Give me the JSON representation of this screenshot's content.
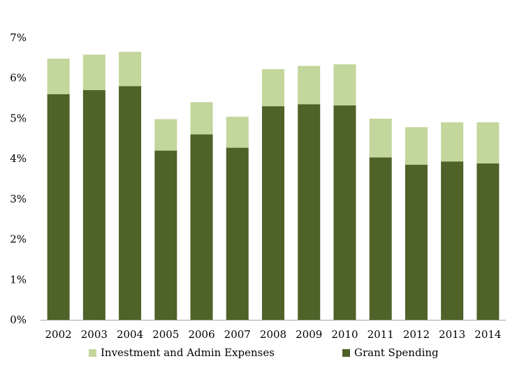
{
  "chart_data": {
    "type": "bar",
    "stacked": true,
    "title": "",
    "xlabel": "",
    "ylabel": "",
    "categories": [
      "2002",
      "2003",
      "2004",
      "2005",
      "2006",
      "2007",
      "2008",
      "2009",
      "2010",
      "2011",
      "2012",
      "2013",
      "2014"
    ],
    "series": [
      {
        "name": "Grant Spending",
        "color": "#4f6228",
        "values": [
          5.6,
          5.7,
          5.8,
          4.2,
          4.6,
          4.27,
          5.3,
          5.35,
          5.32,
          4.03,
          3.85,
          3.93,
          3.88
        ]
      },
      {
        "name": "Investment and Admin Expenses",
        "color": "#c3d69b",
        "values": [
          0.88,
          0.88,
          0.85,
          0.78,
          0.8,
          0.77,
          0.92,
          0.95,
          1.02,
          0.96,
          0.93,
          0.97,
          1.02
        ]
      }
    ],
    "ylim": [
      0,
      7
    ],
    "yticks": [
      0,
      1,
      2,
      3,
      4,
      5,
      6,
      7
    ],
    "ytick_labels": [
      "0%",
      "1%",
      "2%",
      "3%",
      "4%",
      "5%",
      "6%",
      "7%"
    ],
    "grid": false,
    "legend_position": "bottom",
    "legend_order": [
      "Investment and Admin Expenses",
      "Grant Spending"
    ]
  }
}
